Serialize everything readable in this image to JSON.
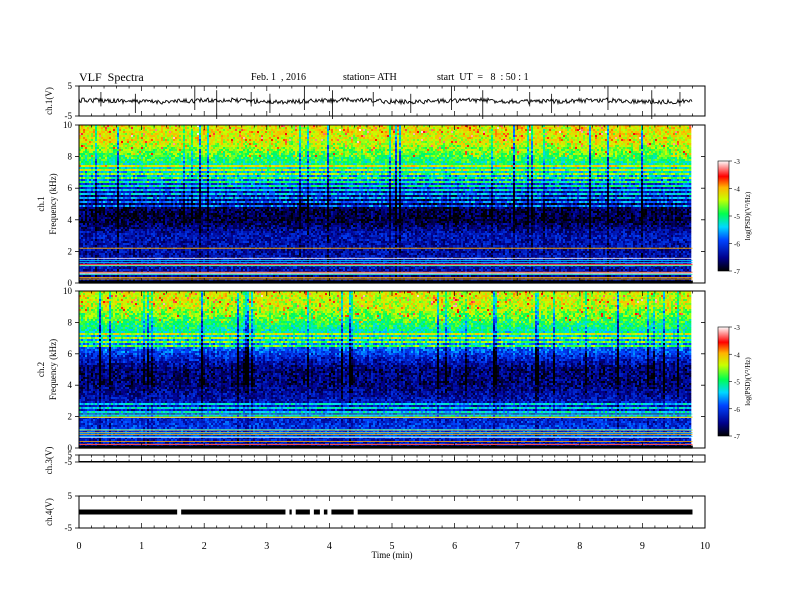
{
  "header": {
    "title": "VLF  Spectra",
    "date": "Feb. 1  , 2016",
    "station": "station= ATH",
    "start": "start  UT  =   8  : 50 : 1"
  },
  "chart_data": [
    {
      "type": "line",
      "panel": "ch1-waveform",
      "ylabel": "ch.1(V)",
      "ylim": [
        -5,
        5
      ],
      "yticks": [
        "5",
        "-5"
      ],
      "xlim": [
        0,
        9.8
      ],
      "baseline": 0,
      "spike_times_min": [
        0.35,
        0.9,
        1.85,
        2.2,
        2.75,
        3.05,
        3.6,
        4.05,
        4.7,
        5.3,
        5.95,
        6.45,
        7.2,
        7.55,
        8.45,
        9.15,
        9.6
      ]
    },
    {
      "type": "heatmap",
      "panel": "ch1-spectrogram",
      "ylabel": "Frequency  (kHz)",
      "channel_label": "ch.1",
      "ylim": [
        0,
        10
      ],
      "yticks": [
        "0",
        "2",
        "4",
        "6",
        "8",
        "10"
      ],
      "xlim": [
        0,
        9.8
      ],
      "freq_profile_log_psd": [
        [
          0,
          -6.6
        ],
        [
          1,
          -6.3
        ],
        [
          2,
          -6.4
        ],
        [
          3,
          -6.3
        ],
        [
          4,
          -6.8
        ],
        [
          5,
          -6.7
        ],
        [
          6,
          -6.2
        ],
        [
          7,
          -5.4
        ],
        [
          8,
          -4.8
        ],
        [
          9,
          -4.3
        ],
        [
          10,
          -4.2
        ]
      ],
      "colorbar": {
        "label": "log(PSD)(V²/Hz)",
        "range": [
          -7,
          -3
        ],
        "ticks": [
          "-3",
          "-4",
          "-5",
          "-6",
          "-7"
        ]
      }
    },
    {
      "type": "heatmap",
      "panel": "ch2-spectrogram",
      "ylabel": "Frequency  (kHz)",
      "channel_label": "ch.2",
      "ylim": [
        0,
        10
      ],
      "yticks": [
        "0",
        "2",
        "4",
        "6",
        "8",
        "10"
      ],
      "xlim": [
        0,
        9.8
      ],
      "freq_profile_log_psd": [
        [
          0,
          -6.5
        ],
        [
          1,
          -6.0
        ],
        [
          2,
          -6.2
        ],
        [
          3,
          -6.3
        ],
        [
          4,
          -6.6
        ],
        [
          5,
          -6.6
        ],
        [
          6,
          -6.0
        ],
        [
          7,
          -5.4
        ],
        [
          8,
          -4.9
        ],
        [
          9,
          -4.4
        ],
        [
          10,
          -4.3
        ]
      ],
      "colorbar": {
        "label": "log(PSD)(V²/Hz)",
        "range": [
          -7,
          -3
        ],
        "ticks": [
          "-3",
          "-4",
          "-5",
          "-6",
          "-7"
        ]
      }
    },
    {
      "type": "line",
      "panel": "ch3-waveform",
      "ylabel": "ch.3(V)",
      "ylim": [
        -5,
        5
      ],
      "yticks": [
        "5",
        "-5"
      ],
      "xlim": [
        0,
        9.8
      ],
      "baseline": -5
    },
    {
      "type": "line",
      "panel": "ch4-waveform",
      "ylabel": "ch.4(V)",
      "ylim": [
        -5,
        5
      ],
      "yticks": [
        "5",
        "-5"
      ],
      "xlim": [
        0,
        9.8
      ],
      "baseline": 0,
      "gap_times_min": [
        1.6,
        3.33,
        3.43,
        3.72,
        3.88,
        4.0,
        4.42
      ]
    }
  ],
  "xaxis": {
    "label": "Time  (min)",
    "range": [
      0,
      10
    ],
    "ticks": [
      "0",
      "1",
      "2",
      "3",
      "4",
      "5",
      "6",
      "7",
      "8",
      "9",
      "10"
    ]
  }
}
